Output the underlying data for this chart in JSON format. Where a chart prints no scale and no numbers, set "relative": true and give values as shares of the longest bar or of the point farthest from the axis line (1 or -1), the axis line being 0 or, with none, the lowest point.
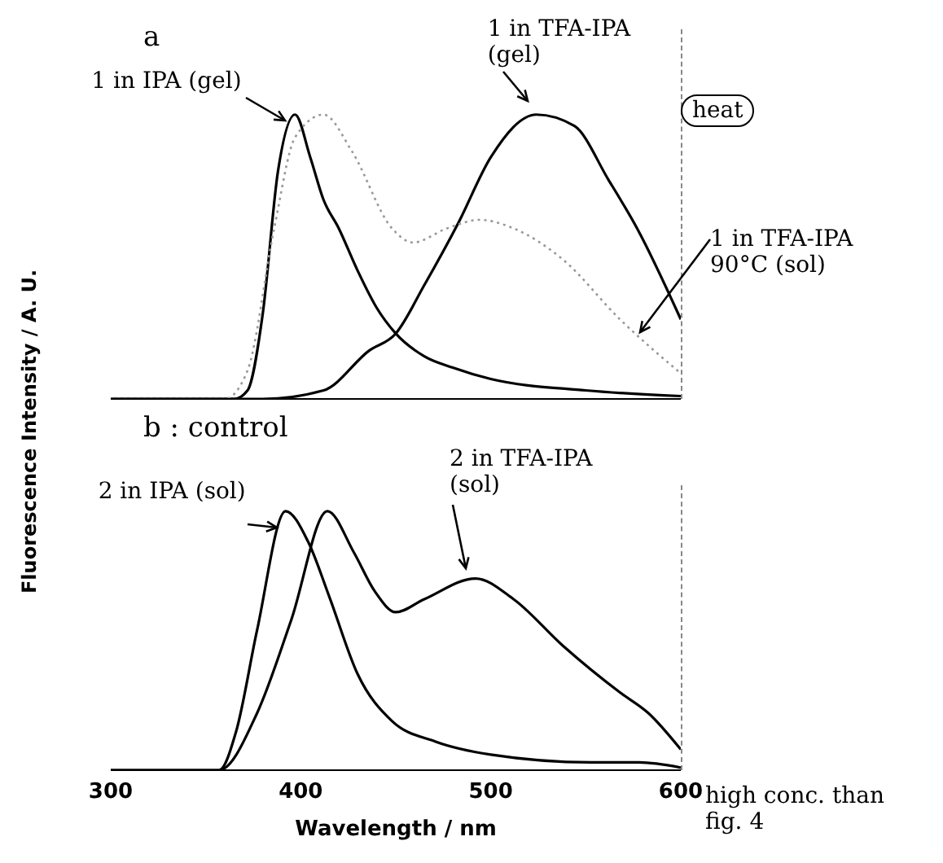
{
  "chart_data": [
    {
      "type": "line",
      "title": "a",
      "ylabel": "Fluorescence Intensity / A. U.",
      "relative": true,
      "xlim": [
        300,
        600
      ],
      "tick_labels": false,
      "annotations": [
        "heat"
      ],
      "series": [
        {
          "name": "1 in IPA (gel)",
          "color": "#000000",
          "line_style": "solid",
          "x": [
            300,
            365,
            372,
            380,
            388,
            397,
            405,
            412,
            420,
            430,
            440,
            450,
            465,
            480,
            500,
            550,
            600
          ],
          "values": [
            0,
            0,
            0.03,
            0.3,
            0.8,
            1.0,
            0.85,
            0.7,
            0.6,
            0.45,
            0.32,
            0.23,
            0.15,
            0.11,
            0.07,
            0.03,
            0.01
          ]
        },
        {
          "name": "1 in TFA-IPA (gel)",
          "color": "#000000",
          "line_style": "solid",
          "x": [
            300,
            380,
            412,
            436,
            450,
            465,
            483,
            500,
            524,
            544,
            562,
            577,
            600
          ],
          "values": [
            0,
            0,
            0.03,
            0.17,
            0.23,
            0.4,
            0.62,
            0.85,
            1.0,
            0.96,
            0.77,
            0.6,
            0.28
          ]
        },
        {
          "name": "1 in TFA-IPA 90°C (sol)",
          "color": "#999999",
          "line_style": "dotted",
          "x": [
            300,
            360,
            372,
            386,
            397,
            412,
            427,
            448,
            459,
            477,
            494,
            512,
            538,
            568,
            600
          ],
          "values": [
            0,
            0,
            0.1,
            0.6,
            0.92,
            1.0,
            0.87,
            0.6,
            0.55,
            0.6,
            0.63,
            0.6,
            0.49,
            0.28,
            0.09
          ]
        }
      ]
    },
    {
      "type": "line",
      "title": "b : control",
      "xlabel": "Wavelength / nm",
      "relative": true,
      "xlim": [
        300,
        600
      ],
      "xticks": [
        300,
        400,
        500,
        600
      ],
      "tick_labels": "x",
      "annotations": [
        "high conc. than fig. 4"
      ],
      "series": [
        {
          "name": "2 in IPA (sol)",
          "color": "#000000",
          "line_style": "solid",
          "x": [
            300,
            357,
            366,
            377,
            392,
            404,
            415,
            430,
            448,
            471,
            500,
            553,
            578,
            600
          ],
          "values": [
            0,
            0,
            0.15,
            0.54,
            1.0,
            0.88,
            0.67,
            0.37,
            0.19,
            0.11,
            0.06,
            0.03,
            0.03,
            0.01
          ]
        },
        {
          "name": "2 in TFA-IPA (sol)",
          "color": "#000000",
          "line_style": "solid",
          "x": [
            300,
            357,
            377,
            395,
            414,
            428,
            439,
            450,
            465,
            492,
            512,
            538,
            568,
            583,
            600
          ],
          "values": [
            0,
            0,
            0.22,
            0.58,
            1.0,
            0.84,
            0.69,
            0.61,
            0.66,
            0.74,
            0.66,
            0.48,
            0.3,
            0.22,
            0.08
          ]
        }
      ]
    }
  ]
}
